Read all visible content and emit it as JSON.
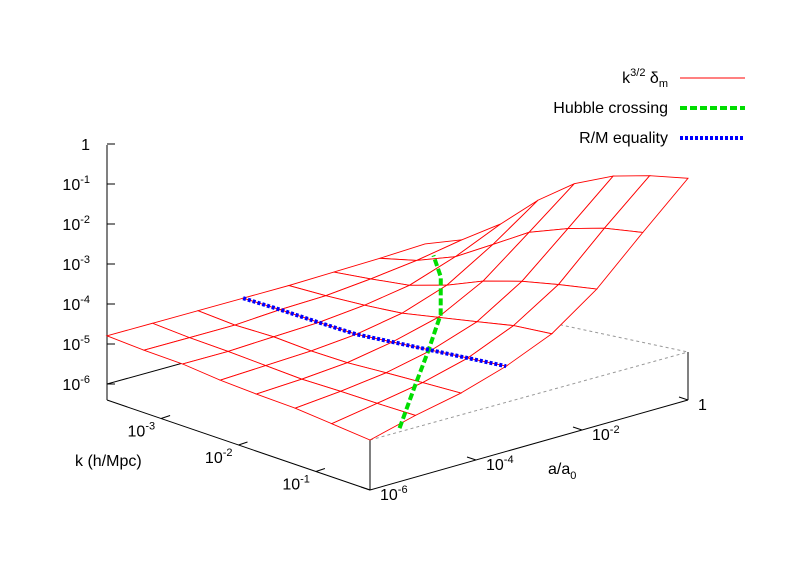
{
  "chart_data": {
    "type": "surface",
    "log": true,
    "legend": "top-right",
    "xlabel": "k   (h/Mpc)",
    "ylabel": [
      "a/a",
      "0"
    ],
    "xlim": [
      0.0002,
      0.5
    ],
    "ylim": [
      1e-06,
      1
    ],
    "zlim": [
      1e-06,
      1
    ],
    "xticks": [
      {
        "value": 0.001,
        "label": [
          "10",
          "-3"
        ]
      },
      {
        "value": 0.01,
        "label": [
          "10",
          "-2"
        ]
      },
      {
        "value": 0.1,
        "label": [
          "10",
          "-1"
        ]
      }
    ],
    "yticks": [
      {
        "value": 1e-06,
        "label": [
          "10",
          "-6"
        ]
      },
      {
        "value": 0.0001,
        "label": [
          "10",
          "-4"
        ]
      },
      {
        "value": 0.01,
        "label": [
          "10",
          "-2"
        ]
      },
      1
    ],
    "zticks": [
      {
        "value": 1e-06,
        "label": [
          "10",
          "-6"
        ]
      },
      {
        "value": 1e-05,
        "label": [
          "10",
          "-5"
        ]
      },
      {
        "value": 0.0001,
        "label": [
          "10",
          "-4"
        ]
      },
      {
        "value": 0.001,
        "label": [
          "10",
          "-3"
        ]
      },
      {
        "value": 0.01,
        "label": [
          "10",
          "-2"
        ]
      },
      {
        "value": 0.1,
        "label": [
          "10",
          "-1"
        ]
      },
      1
    ],
    "series": [
      {
        "name": [
          "k",
          "3/2",
          " δ",
          "m"
        ],
        "color": "#ff0000",
        "dash": "solid",
        "k": [
          0.0002,
          0.0006,
          0.0019,
          0.0058,
          0.017,
          0.054,
          0.16,
          0.5
        ],
        "a": [
          1e-06,
          7.2e-06,
          5.2e-05,
          0.00037,
          0.0027,
          0.019,
          0.14,
          1
        ],
        "values": [
          [
            1.6e-05,
            1.6e-05,
            1.6e-05,
            1.6e-05,
            1.6e-05,
            1.7e-05,
            1.8e-05,
            2e-05
          ],
          [
            1.1e-05,
            1.1e-05,
            1.1e-05,
            1.3e-05,
            1.4e-05,
            1.8e-05,
            2.5e-05,
            4e-05
          ],
          [
            8e-06,
            8e-06,
            9e-06,
            1e-05,
            1.3e-05,
            2e-05,
            5e-05,
            0.00016
          ],
          [
            5e-06,
            5.6e-06,
            6.3e-06,
            8e-06,
            1.3e-05,
            3.2e-05,
            0.00016,
            0.001
          ],
          [
            3.5e-06,
            4e-06,
            5e-06,
            8e-06,
            1.6e-05,
            6.3e-05,
            0.0005,
            0.004
          ],
          [
            2.5e-06,
            3.2e-06,
            4.5e-06,
            8e-06,
            2e-05,
            0.0001,
            0.001,
            0.01
          ],
          [
            1.6e-06,
            2.5e-06,
            4e-06,
            8e-06,
            2.5e-05,
            0.00013,
            0.0016,
            0.016
          ],
          [
            1e-06,
            2e-06,
            3.5e-06,
            8e-06,
            2.5e-05,
            0.00016,
            0.002,
            0.022
          ]
        ]
      },
      {
        "name": [
          "Hubble crossing"
        ],
        "color": "#00dd00",
        "dash": "dashed",
        "k": [
          0.4,
          0.13,
          0.04,
          0.012,
          0.004,
          0.002
        ],
        "a": [
          5e-06,
          5e-05,
          0.0005,
          0.005,
          0.025,
          0.05
        ],
        "values": [
          1e-06,
          3e-06,
          6e-06,
          1.3e-05,
          4e-05,
          8e-05
        ]
      },
      {
        "name": [
          "R/M equality"
        ],
        "color": "#0000ff",
        "dash": "dotted",
        "k": [
          0.0002,
          0.0006,
          0.0019,
          0.0058,
          0.017,
          0.054,
          0.16,
          0.5
        ],
        "a": [
          0.00037,
          0.00037,
          0.00037,
          0.00037,
          0.00037,
          0.00037,
          0.00037,
          0.00037
        ],
        "values": [
          1.6e-05,
          1.3e-05,
          1e-05,
          8e-06,
          8e-06,
          8e-06,
          8e-06,
          8e-06
        ]
      }
    ]
  }
}
